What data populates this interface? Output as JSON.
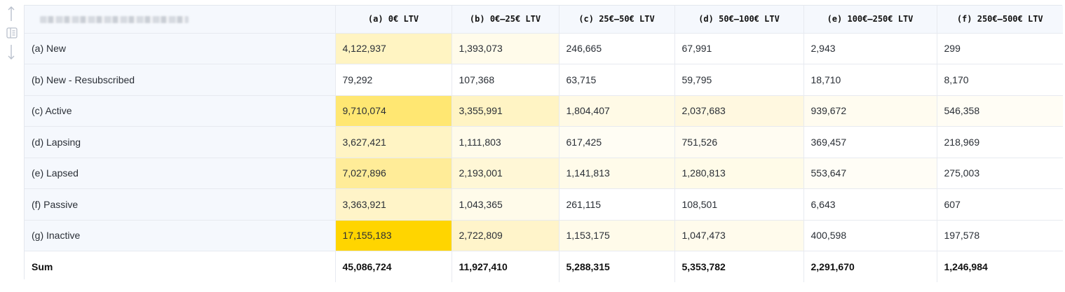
{
  "toolbar": {
    "icons": [
      "arrow-up-icon",
      "sidebar-columns-icon",
      "arrow-down-icon"
    ]
  },
  "table": {
    "corner_label": "",
    "columns": [
      "(a) 0€ LTV",
      "(b) 0€–25€ LTV",
      "(c) 25€–50€ LTV",
      "(d) 50€–100€ LTV",
      "(e) 100€–250€ LTV",
      "(f) 250€–500€ LTV"
    ],
    "rows": [
      {
        "label": "(a) New",
        "values": [
          "4,122,937",
          "1,393,073",
          "246,665",
          "67,991",
          "2,943",
          "299"
        ],
        "colors": [
          "#fff4c2",
          "#fffbea",
          "#ffffff",
          "#ffffff",
          "#ffffff",
          "#ffffff"
        ]
      },
      {
        "label": "(b) New - Resubscribed",
        "values": [
          "79,292",
          "107,368",
          "63,715",
          "59,795",
          "18,710",
          "8,170"
        ],
        "colors": [
          "#ffffff",
          "#ffffff",
          "#ffffff",
          "#ffffff",
          "#ffffff",
          "#ffffff"
        ]
      },
      {
        "label": "(c) Active",
        "values": [
          "9,710,074",
          "3,355,991",
          "1,804,407",
          "2,037,683",
          "939,672",
          "546,358"
        ],
        "colors": [
          "#ffe772",
          "#fff4c4",
          "#fffae6",
          "#fff8e0",
          "#fffcf0",
          "#fffdf5"
        ]
      },
      {
        "label": "(d) Lapsing",
        "values": [
          "3,627,421",
          "1,111,803",
          "617,425",
          "751,526",
          "369,457",
          "218,969"
        ],
        "colors": [
          "#fff4c4",
          "#fffbea",
          "#fffdf4",
          "#fffcf2",
          "#ffffff",
          "#ffffff"
        ]
      },
      {
        "label": "(e) Lapsed",
        "values": [
          "7,027,896",
          "2,193,001",
          "1,141,813",
          "1,280,813",
          "553,647",
          "275,003"
        ],
        "colors": [
          "#ffec98",
          "#fff7d6",
          "#fffbea",
          "#fffbe8",
          "#fffdf6",
          "#ffffff"
        ]
      },
      {
        "label": "(f) Passive",
        "values": [
          "3,363,921",
          "1,043,365",
          "261,115",
          "108,501",
          "6,643",
          "607"
        ],
        "colors": [
          "#fff4c8",
          "#fffbea",
          "#ffffff",
          "#ffffff",
          "#ffffff",
          "#ffffff"
        ]
      },
      {
        "label": "(g) Inactive",
        "values": [
          "17,155,183",
          "2,722,809",
          "1,153,175",
          "1,047,473",
          "400,598",
          "197,578"
        ],
        "colors": [
          "#ffd500",
          "#fff4ca",
          "#fffbea",
          "#fffbec",
          "#ffffff",
          "#ffffff"
        ]
      }
    ],
    "sum_row": {
      "label": "Sum",
      "values": [
        "45,086,724",
        "11,927,410",
        "5,288,315",
        "5,353,782",
        "2,291,670",
        "1,246,984"
      ]
    }
  }
}
